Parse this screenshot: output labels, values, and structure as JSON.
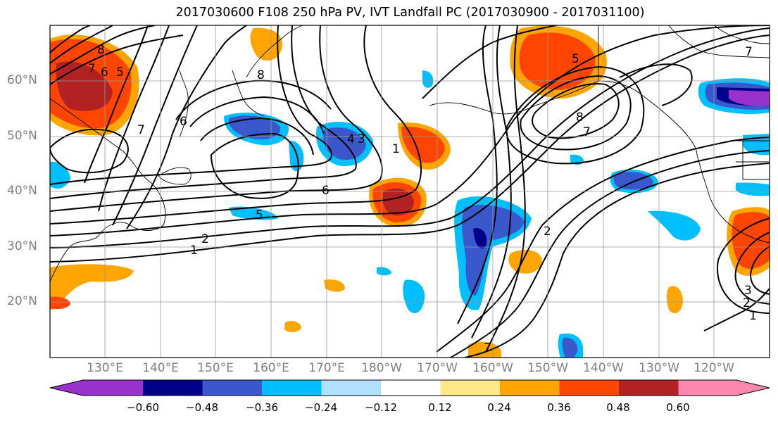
{
  "title": "2017030600 F108 250 hPa PV, IVT Landfall PC (2017030900 - 2017031100)",
  "map": {
    "lat_labels": [
      "60°N",
      "50°N",
      "40°N",
      "30°N",
      "20°N"
    ],
    "lon_labels": [
      "130°E",
      "140°E",
      "150°E",
      "160°E",
      "170°E",
      "180°W",
      "170°W",
      "160°W",
      "150°W",
      "140°W",
      "130°W",
      "120°W"
    ],
    "contour_labels": [
      "8",
      "7",
      "6",
      "5",
      "7",
      "6",
      "8",
      "4",
      "3",
      "1",
      "6",
      "5",
      "1",
      "2",
      "2",
      "5",
      "8",
      "7",
      "7",
      "3",
      "2",
      "1",
      "7"
    ]
  },
  "colorbar": {
    "ticks": [
      "−0.60",
      "−0.48",
      "−0.36",
      "−0.24",
      "−0.12",
      "0.12",
      "0.24",
      "0.36",
      "0.48",
      "0.60"
    ],
    "colors": [
      "#9932cc",
      "#00008b",
      "#3a58cc",
      "#00bfff",
      "#b0e0ff",
      "#ffffff",
      "#ffe88a",
      "#ffa500",
      "#ff4500",
      "#b22222",
      "#ff88b0"
    ]
  }
}
